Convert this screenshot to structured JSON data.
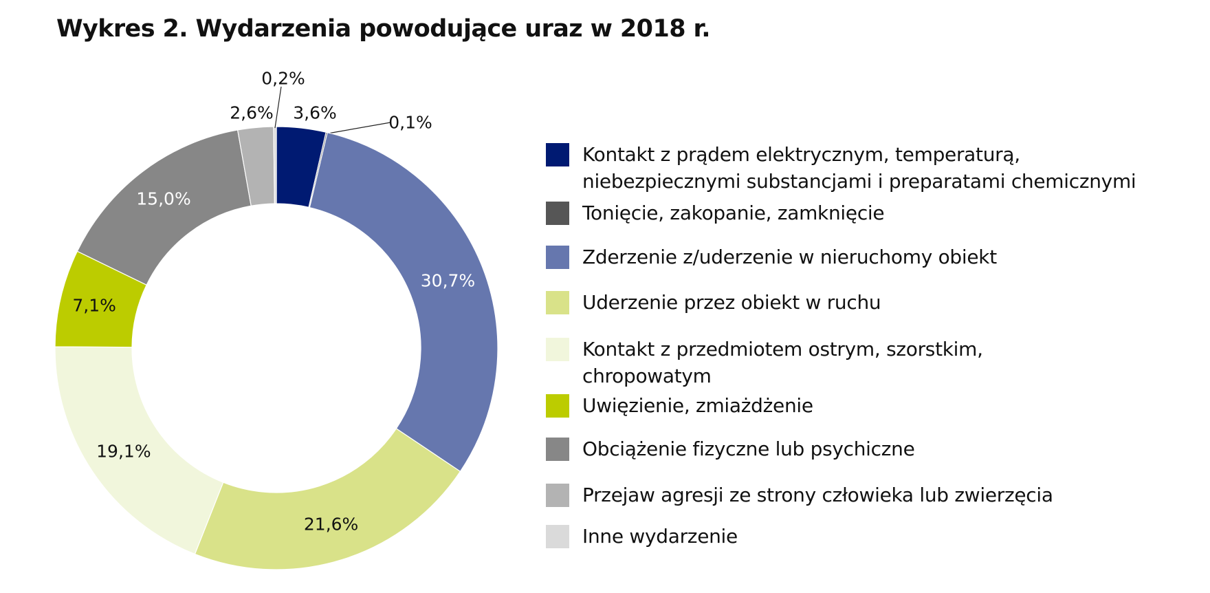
{
  "chart_data": {
    "type": "pie",
    "style": "donut",
    "title": "Wykres 2. Wydarzenia powodujące uraz w 2018 r.",
    "legend_position": "right",
    "start_angle_deg": 0,
    "direction": "clockwise",
    "slices": [
      {
        "name": "Kontakt z prądem elektrycznym, temperaturą,\nniebezpiecznymi substancjami i preparatami chemicznymi",
        "value": 3.6,
        "label": "3,6%",
        "color": "#001a72",
        "label_color": "#111111"
      },
      {
        "name": "Tonięcie, zakopanie, zamknięcie",
        "value": 0.1,
        "label": "0,1%",
        "color": "#565656",
        "label_color": "#111111"
      },
      {
        "name": "Zderzenie z/uderzenie w nieruchomy obiekt",
        "value": 30.7,
        "label": "30,7%",
        "color": "#6677ae",
        "label_color": "#ffffff"
      },
      {
        "name": "Uderzenie przez obiekt w ruchu",
        "value": 21.6,
        "label": "21,6%",
        "color": "#d9e289",
        "label_color": "#111111"
      },
      {
        "name": "Kontakt z przedmiotem ostrym, szorstkim,\nchropowatym",
        "value": 19.1,
        "label": "19,1%",
        "color": "#f1f6dc",
        "label_color": "#111111"
      },
      {
        "name": "Uwięzienie, zmiażdżenie",
        "value": 7.1,
        "label": "7,1%",
        "color": "#bccc00",
        "label_color": "#111111"
      },
      {
        "name": "Obciążenie fizyczne lub psychiczne",
        "value": 15.0,
        "label": "15,0%",
        "color": "#878787",
        "label_color": "#ffffff"
      },
      {
        "name": "Przejaw agresji ze strony człowieka lub zwierzęcia",
        "value": 2.6,
        "label": "2,6%",
        "color": "#b3b3b3",
        "label_color": "#111111"
      },
      {
        "name": "Inne wydarzenie",
        "value": 0.2,
        "label": "0,2%",
        "color": "#dadada",
        "label_color": "#111111"
      }
    ]
  }
}
